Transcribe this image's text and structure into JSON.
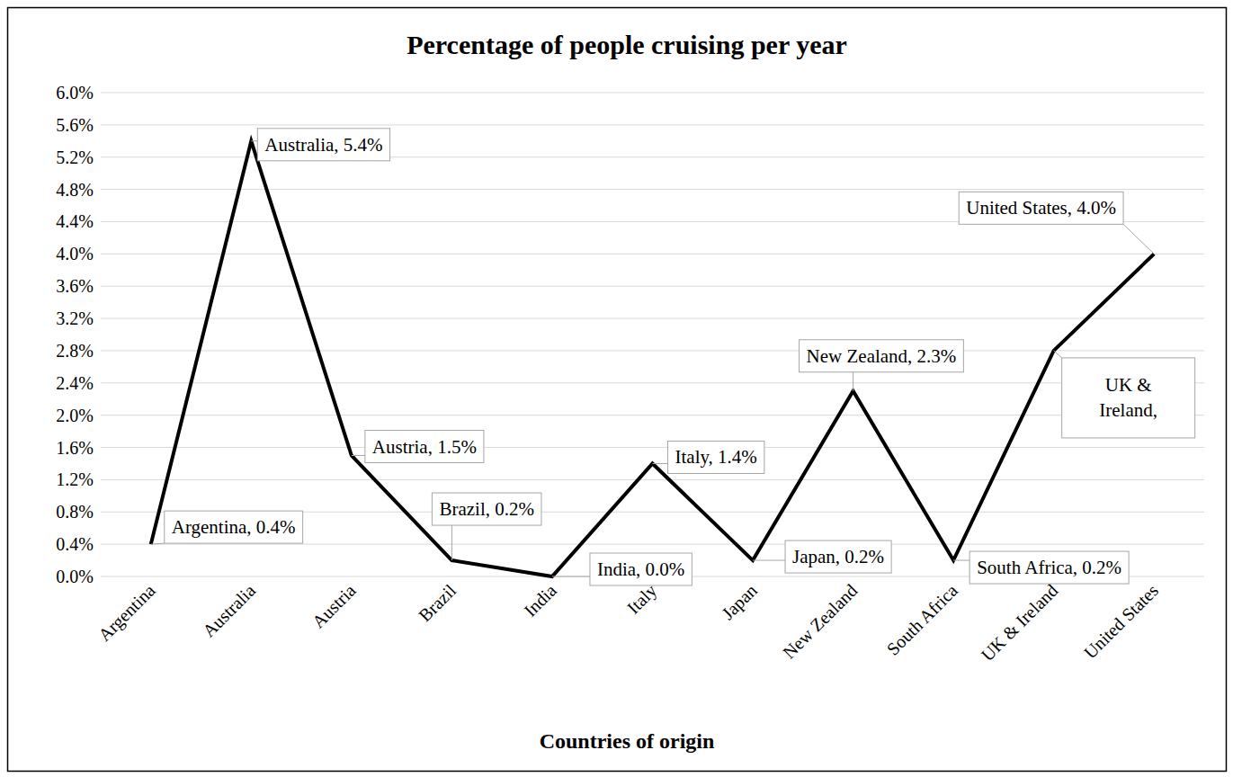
{
  "chart_data": {
    "type": "line",
    "title": "Percentage of people cruising per year",
    "x_label": "Countries of origin",
    "categories": [
      "Argentina",
      "Australia",
      "Austria",
      "Brazil",
      "India",
      "Italy",
      "Japan",
      "New Zealand",
      "South Africa",
      "UK & Ireland",
      "United States"
    ],
    "values": [
      0.4,
      5.4,
      1.5,
      0.2,
      0.0,
      1.4,
      0.2,
      2.3,
      0.2,
      2.8,
      4.0
    ],
    "value_labels": [
      "Argentina, 0.4%",
      "Australia, 5.4%",
      "Austria, 1.5%",
      "Brazil, 0.2%",
      "India, 0.0%",
      "Italy, 1.4%",
      "Japan, 0.2%",
      "New Zealand, 2.3%",
      "South Africa, 0.2%",
      "UK & Ireland,",
      "United States, 4.0%"
    ],
    "data_labels": true,
    "color": "#000000",
    "ylim": [
      0,
      6
    ],
    "yticks": [
      {
        "value": 0,
        "label": "0.0%"
      },
      {
        "value": 0.4,
        "label": "0.4%"
      },
      {
        "value": 0.8,
        "label": "0.8%"
      },
      {
        "value": 1.2,
        "label": "1.2%"
      },
      {
        "value": 1.6,
        "label": "1.6%"
      },
      {
        "value": 2.0,
        "label": "2.0%"
      },
      {
        "value": 2.4,
        "label": "2.4%"
      },
      {
        "value": 2.8,
        "label": "2.8%"
      },
      {
        "value": 3.2,
        "label": "3.2%"
      },
      {
        "value": 3.6,
        "label": "3.6%"
      },
      {
        "value": 4.0,
        "label": "4.0%"
      },
      {
        "value": 4.4,
        "label": "4.4%"
      },
      {
        "value": 4.8,
        "label": "4.8%"
      },
      {
        "value": 5.2,
        "label": "5.2%"
      },
      {
        "value": 5.6,
        "label": "5.6%"
      },
      {
        "value": 6.0,
        "label": "6.0%"
      }
    ],
    "grid": true
  }
}
